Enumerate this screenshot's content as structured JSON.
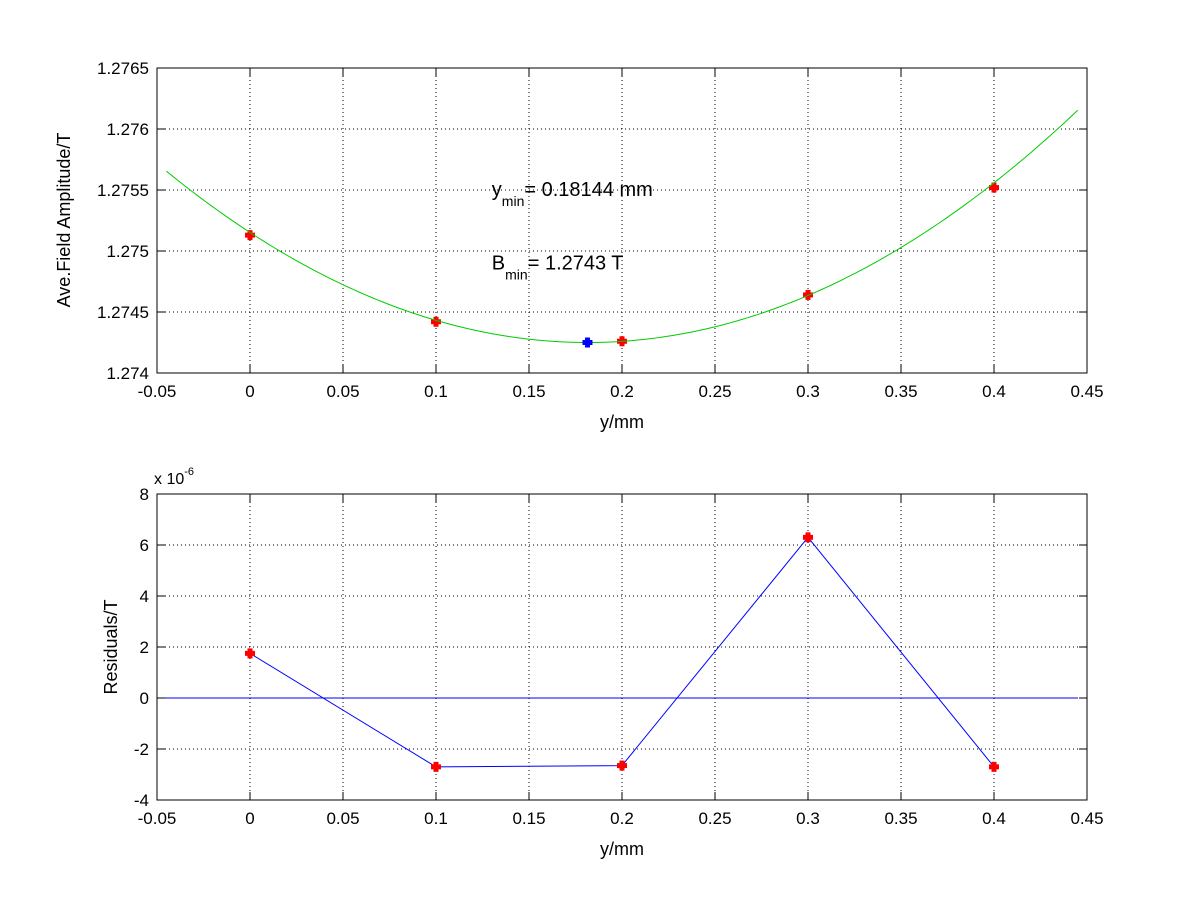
{
  "chart_data": [
    {
      "type": "scatter",
      "xlabel": "y/mm",
      "ylabel": "Ave.Field Amplitude/T",
      "xlim": [
        -0.05,
        0.45
      ],
      "ylim": [
        1.274,
        1.2765
      ],
      "xticks": [
        -0.05,
        0,
        0.05,
        0.1,
        0.15,
        0.2,
        0.25,
        0.3,
        0.35,
        0.4,
        0.45
      ],
      "yticks": [
        1.274,
        1.2745,
        1.275,
        1.2755,
        1.276,
        1.2765
      ],
      "xtick_labels": [
        "-0.05",
        "0",
        "0.05",
        "0.1",
        "0.15",
        "0.2",
        "0.25",
        "0.3",
        "0.35",
        "0.4",
        "0.45"
      ],
      "ytick_labels": [
        "1.274",
        "1.2745",
        "1.275",
        "1.2755",
        "1.276",
        "1.2765"
      ],
      "grid": true,
      "series": [
        {
          "kind": "markers",
          "marker": "plus",
          "color": "#ff0000",
          "x": [
            0,
            0.1,
            0.2,
            0.3,
            0.4
          ],
          "y": [
            1.27513,
            1.27442,
            1.27426,
            1.27464,
            1.27552
          ]
        },
        {
          "kind": "fit-curve",
          "color": "#00cc00",
          "x_range": [
            -0.045,
            0.445
          ],
          "quadratic": {
            "vertex_x": 0.18144,
            "vertex_y": 1.27425,
            "a": 0.0274
          }
        },
        {
          "kind": "minimum-marker",
          "marker": "plus",
          "color": "#0000ff",
          "x": [
            0.18144
          ],
          "y": [
            1.27425
          ]
        }
      ],
      "annotations": [
        {
          "main": "y",
          "sub": "min",
          "rest": "= 0.18144 mm",
          "x": 0.13,
          "y": 1.27545
        },
        {
          "main": "B",
          "sub": "min",
          "rest": "= 1.2743 T",
          "x": 0.13,
          "y": 1.27485
        }
      ]
    },
    {
      "type": "line",
      "xlabel": "y/mm",
      "ylabel": "Residuals/T",
      "y_exponent_label": "x 10",
      "y_exponent_power": "-6",
      "xlim": [
        -0.05,
        0.45
      ],
      "ylim": [
        -4,
        8
      ],
      "xticks": [
        -0.05,
        0,
        0.05,
        0.1,
        0.15,
        0.2,
        0.25,
        0.3,
        0.35,
        0.4,
        0.45
      ],
      "yticks": [
        -4,
        -2,
        0,
        2,
        4,
        6,
        8
      ],
      "xtick_labels": [
        "-0.05",
        "0",
        "0.05",
        "0.1",
        "0.15",
        "0.2",
        "0.25",
        "0.3",
        "0.35",
        "0.4",
        "0.45"
      ],
      "ytick_labels": [
        "-4",
        "-2",
        "0",
        "2",
        "4",
        "6",
        "8"
      ],
      "grid": true,
      "zero_line": {
        "y": 0,
        "color": "#0000ff",
        "x_range": [
          -0.05,
          0.445
        ]
      },
      "series": [
        {
          "kind": "line-markers",
          "marker": "plus",
          "line_color": "#0000ff",
          "marker_color": "#ff0000",
          "x": [
            0,
            0.1,
            0.2,
            0.3,
            0.4
          ],
          "y": [
            1.75,
            -2.7,
            -2.65,
            6.3,
            -2.7
          ]
        }
      ]
    }
  ]
}
